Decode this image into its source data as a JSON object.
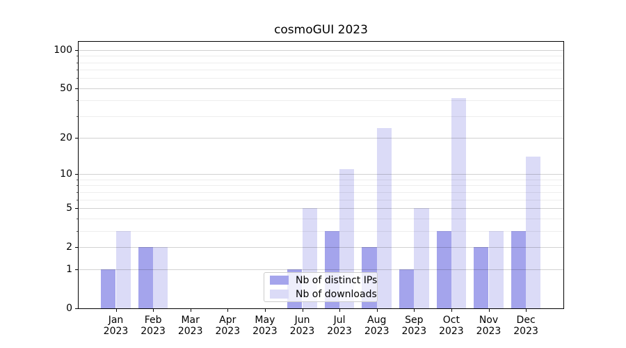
{
  "title": "cosmoGUI 2023",
  "chart_data": {
    "type": "bar",
    "title": "cosmoGUI 2023",
    "categories": [
      "Jan 2023",
      "Feb 2023",
      "Mar 2023",
      "Apr 2023",
      "May 2023",
      "Jun 2023",
      "Jul 2023",
      "Aug 2023",
      "Sep 2023",
      "Oct 2023",
      "Nov 2023",
      "Dec 2023"
    ],
    "series": [
      {
        "name": "Nb of distinct IPs",
        "color": "#a4a4ec",
        "values": [
          1,
          2,
          0,
          0,
          0,
          1,
          3,
          2,
          1,
          3,
          2,
          3
        ]
      },
      {
        "name": "Nb of downloads",
        "color": "#dbdbf7",
        "values": [
          3,
          2,
          0,
          0,
          0,
          5,
          11,
          24,
          5,
          42,
          3,
          14
        ]
      }
    ],
    "xlabel": "",
    "ylabel": "",
    "yscale": "log1p",
    "ylim": [
      0,
      116
    ],
    "yticks_major": [
      0,
      1,
      2,
      5,
      10,
      20,
      50,
      100
    ],
    "yticks_minor": [
      3,
      4,
      6,
      7,
      8,
      9,
      30,
      40,
      60,
      70,
      80,
      90
    ],
    "grid": true,
    "legend_position": "lower center"
  },
  "legend": {
    "entries": [
      {
        "label": "Nb of distinct IPs",
        "color": "#a4a4ec"
      },
      {
        "label": "Nb of downloads",
        "color": "#dbdbf7"
      }
    ]
  }
}
